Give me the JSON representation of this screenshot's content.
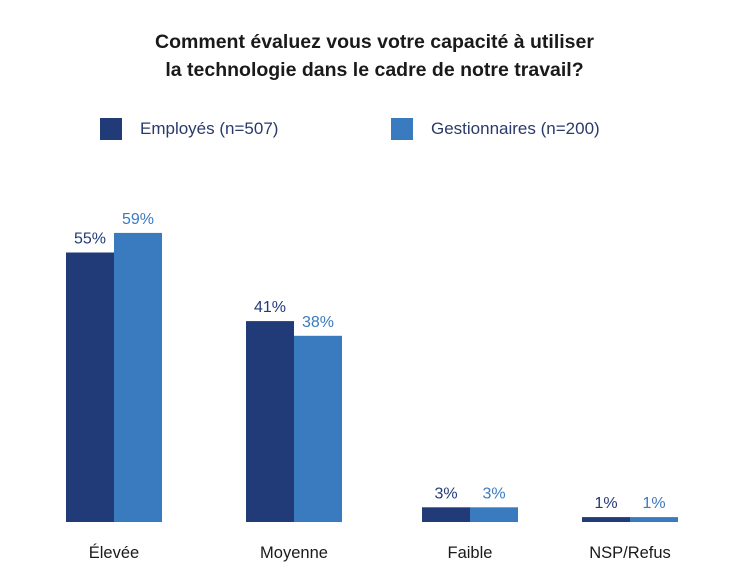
{
  "chart_data": {
    "type": "bar",
    "title_line1": "Comment évaluez vous votre capacité à utiliser",
    "title_line2": "la technologie dans le cadre de notre travail?",
    "categories": [
      "Élevée",
      "Moyenne",
      "Faible",
      "NSP/Refus"
    ],
    "series": [
      {
        "name": "Employés (n=507)",
        "values": [
          55,
          41,
          3,
          1
        ],
        "labels": [
          "55%",
          "41%",
          "3%",
          "1%"
        ],
        "color": "#213a78",
        "label_color": "#213a78"
      },
      {
        "name": "Gestionnaires (n=200)",
        "values": [
          59,
          38,
          3,
          1
        ],
        "labels": [
          "59%",
          "38%",
          "3%",
          "1%"
        ],
        "color": "#3a7abf",
        "label_color": "#3a7abf"
      }
    ],
    "ylim": [
      0,
      60
    ],
    "grid": false,
    "legend_position": "top"
  }
}
